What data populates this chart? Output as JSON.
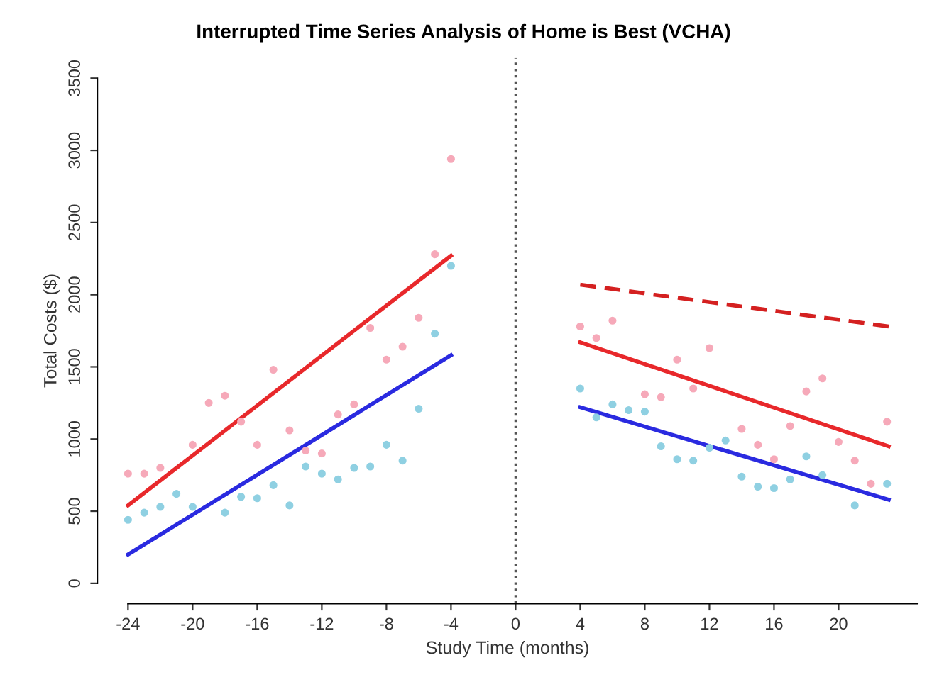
{
  "chart_data": {
    "type": "scatter",
    "title": "Interrupted Time Series Analysis of Home is Best (VCHA)",
    "xlabel": "Study Time (months)",
    "ylabel": "Total Costs ($)",
    "xlim": [
      -25.9,
      24.9
    ],
    "ylim": [
      -140,
      3640
    ],
    "xticks": [
      -24,
      -20,
      -16,
      -12,
      -8,
      -4,
      0,
      4,
      8,
      12,
      16,
      20
    ],
    "yticks": [
      0,
      500,
      1000,
      1500,
      2000,
      2500,
      3000,
      3500
    ],
    "grid": false,
    "legend": false,
    "ref_lines": [
      {
        "axis": "x",
        "value": 0,
        "color": "#555555",
        "line_style": "dotted"
      }
    ],
    "series": [
      {
        "marker": "circle",
        "color": "#f6a9b9",
        "x": [
          -24,
          -23,
          -22,
          -21,
          -20,
          -19,
          -18,
          -17,
          -16,
          -15,
          -14,
          -13,
          -12,
          -11,
          -10,
          -9,
          -8,
          -7,
          -6,
          -5,
          -4,
          4,
          5,
          6,
          8,
          9,
          10,
          11,
          12,
          14,
          15,
          16,
          17,
          18,
          19,
          20,
          21,
          22,
          23
        ],
        "values": [
          760,
          760,
          800,
          null,
          960,
          1250,
          1300,
          1120,
          960,
          1480,
          1060,
          920,
          900,
          1170,
          1240,
          1770,
          1550,
          1640,
          1840,
          2280,
          2940,
          1780,
          1700,
          1820,
          1310,
          1290,
          1550,
          1350,
          1630,
          1070,
          960,
          860,
          1090,
          1330,
          1420,
          980,
          850,
          690,
          1120
        ]
      },
      {
        "marker": "circle",
        "color": "#8fd0e2",
        "x": [
          -24,
          -23,
          -22,
          -21,
          -20,
          -18,
          -17,
          -16,
          -15,
          -14,
          -13,
          -12,
          -11,
          -10,
          -9,
          -8,
          -7,
          -6,
          -5,
          -4,
          4,
          5,
          6,
          7,
          8,
          9,
          10,
          11,
          12,
          13,
          14,
          15,
          16,
          17,
          18,
          19,
          21,
          23
        ],
        "values": [
          440,
          490,
          530,
          620,
          530,
          490,
          600,
          590,
          680,
          540,
          810,
          760,
          720,
          800,
          810,
          960,
          850,
          1210,
          1730,
          2200,
          1350,
          1150,
          1240,
          1200,
          1190,
          950,
          860,
          850,
          940,
          990,
          740,
          670,
          660,
          720,
          880,
          750,
          540,
          690
        ]
      },
      {
        "type": "line",
        "color": "#e8282b",
        "line_style": "solid",
        "x": [
          -24,
          -4
        ],
        "values": [
          540,
          2270
        ]
      },
      {
        "type": "line",
        "color": "#2a2ae0",
        "line_style": "solid",
        "x": [
          -24,
          -4
        ],
        "values": [
          200,
          1580
        ]
      },
      {
        "type": "line",
        "color": "#e8282b",
        "line_style": "solid",
        "x": [
          4,
          23.1
        ],
        "values": [
          1670,
          950
        ]
      },
      {
        "type": "line",
        "color": "#2a2ae0",
        "line_style": "solid",
        "x": [
          4,
          23.1
        ],
        "values": [
          1220,
          580
        ]
      },
      {
        "type": "line",
        "color": "#d42020",
        "line_style": "dashed",
        "x": [
          4,
          23.1
        ],
        "values": [
          2070,
          1780
        ]
      }
    ]
  }
}
